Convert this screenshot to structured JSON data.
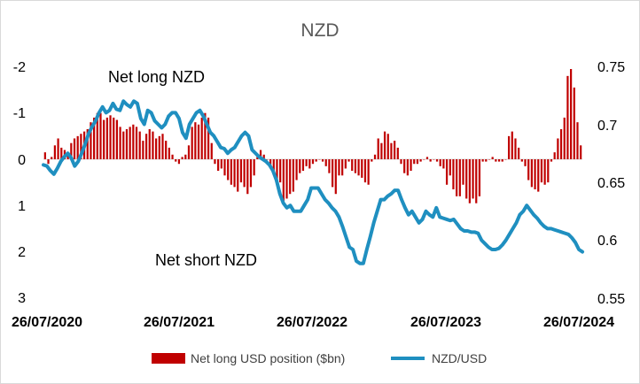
{
  "chart_data": {
    "type": "bar+line",
    "title": "NZD",
    "x_ticks": [
      "26/07/2020",
      "26/07/2021",
      "26/07/2022",
      "26/07/2023",
      "26/07/2024"
    ],
    "left_axis": {
      "inverted": true,
      "range": [
        -2.5,
        3
      ],
      "ticks": [
        "-2",
        "-1",
        "0",
        "1",
        "2",
        "3"
      ]
    },
    "right_axis": {
      "range": [
        0.55,
        0.75
      ],
      "ticks": [
        "0.75",
        "0.7",
        "0.65",
        "0.6",
        "0.55"
      ]
    },
    "annotations": [
      "Net long NZD",
      "Net short NZD"
    ],
    "series": [
      {
        "name": "Net long USD position ($bn)",
        "kind": "bar",
        "color": "#c00000",
        "values": [
          -0.15,
          0.1,
          -0.05,
          -0.3,
          -0.45,
          -0.25,
          -0.2,
          -0.15,
          -0.35,
          -0.45,
          -0.5,
          -0.55,
          -0.6,
          -0.65,
          -0.8,
          -0.9,
          -1.0,
          -1.0,
          -0.85,
          -0.9,
          -0.95,
          -0.9,
          -0.85,
          -0.7,
          -0.6,
          -0.65,
          -0.7,
          -0.75,
          -0.7,
          -0.6,
          -0.4,
          -0.55,
          -0.65,
          -0.6,
          -0.45,
          -0.5,
          -0.55,
          -0.4,
          -0.25,
          -0.1,
          0.05,
          0.1,
          -0.05,
          -0.1,
          -0.3,
          -0.7,
          -0.8,
          -0.75,
          -0.9,
          -1.0,
          -0.9,
          -0.35,
          0.1,
          0.25,
          0.2,
          0.35,
          0.45,
          0.55,
          0.6,
          0.7,
          0.5,
          0.6,
          0.75,
          0.6,
          0.35,
          -0.05,
          -0.2,
          -0.1,
          0.0,
          0.15,
          0.25,
          0.45,
          0.5,
          0.95,
          0.85,
          0.75,
          0.7,
          0.45,
          0.3,
          0.25,
          0.15,
          0.2,
          0.1,
          0.05,
          0.0,
          0.05,
          0.15,
          0.3,
          0.6,
          0.75,
          0.35,
          0.35,
          0.2,
          0.05,
          0.25,
          0.3,
          0.35,
          0.4,
          0.5,
          0.55,
          0.05,
          -0.1,
          -0.45,
          -0.35,
          -0.6,
          -0.55,
          -0.35,
          -0.4,
          -0.25,
          0.1,
          0.3,
          0.35,
          0.25,
          0.1,
          0.1,
          0.05,
          0.0,
          -0.05,
          0.05,
          0.0,
          0.05,
          0.15,
          0.2,
          0.55,
          0.35,
          0.65,
          0.8,
          0.8,
          0.55,
          0.85,
          0.95,
          0.85,
          0.95,
          0.8,
          0.05,
          0.05,
          0.0,
          -0.05,
          0.05,
          0.05,
          0.05,
          0.0,
          -0.5,
          -0.6,
          -0.45,
          -0.25,
          0.05,
          0.15,
          0.45,
          0.6,
          0.65,
          0.7,
          0.5,
          0.55,
          0.5,
          0.05,
          -0.15,
          -0.45,
          -0.65,
          -0.9,
          -1.8,
          -1.95,
          -1.55,
          -0.8,
          -0.3
        ]
      },
      {
        "name": "NZD/USD",
        "kind": "line",
        "axis": "right",
        "color": "#1f8fc0",
        "values": [
          0.665,
          0.664,
          0.66,
          0.657,
          0.662,
          0.668,
          0.672,
          0.675,
          0.671,
          0.664,
          0.668,
          0.675,
          0.683,
          0.692,
          0.698,
          0.703,
          0.71,
          0.715,
          0.71,
          0.712,
          0.718,
          0.713,
          0.712,
          0.72,
          0.717,
          0.715,
          0.72,
          0.718,
          0.705,
          0.7,
          0.712,
          0.71,
          0.703,
          0.7,
          0.697,
          0.7,
          0.707,
          0.71,
          0.71,
          0.705,
          0.693,
          0.688,
          0.7,
          0.705,
          0.71,
          0.712,
          0.707,
          0.7,
          0.693,
          0.69,
          0.685,
          0.68,
          0.679,
          0.675,
          0.678,
          0.68,
          0.685,
          0.69,
          0.693,
          0.69,
          0.678,
          0.675,
          0.672,
          0.67,
          0.668,
          0.665,
          0.66,
          0.652,
          0.64,
          0.632,
          0.628,
          0.63,
          0.625,
          0.625,
          0.625,
          0.63,
          0.635,
          0.645,
          0.645,
          0.645,
          0.64,
          0.635,
          0.632,
          0.628,
          0.625,
          0.62,
          0.612,
          0.603,
          0.594,
          0.592,
          0.582,
          0.58,
          0.58,
          0.592,
          0.603,
          0.615,
          0.625,
          0.635,
          0.635,
          0.638,
          0.64,
          0.643,
          0.643,
          0.635,
          0.628,
          0.622,
          0.625,
          0.62,
          0.615,
          0.618,
          0.625,
          0.622,
          0.62,
          0.628,
          0.62,
          0.619,
          0.618,
          0.617,
          0.618,
          0.614,
          0.61,
          0.608,
          0.608,
          0.607,
          0.607,
          0.606,
          0.6,
          0.597,
          0.594,
          0.592,
          0.592,
          0.593,
          0.596,
          0.6,
          0.605,
          0.61,
          0.615,
          0.622,
          0.625,
          0.63,
          0.626,
          0.622,
          0.619,
          0.615,
          0.612,
          0.61,
          0.61,
          0.609,
          0.608,
          0.607,
          0.606,
          0.605,
          0.602,
          0.598,
          0.592,
          0.59
        ]
      }
    ],
    "legend": {
      "placement": "bottom"
    }
  }
}
